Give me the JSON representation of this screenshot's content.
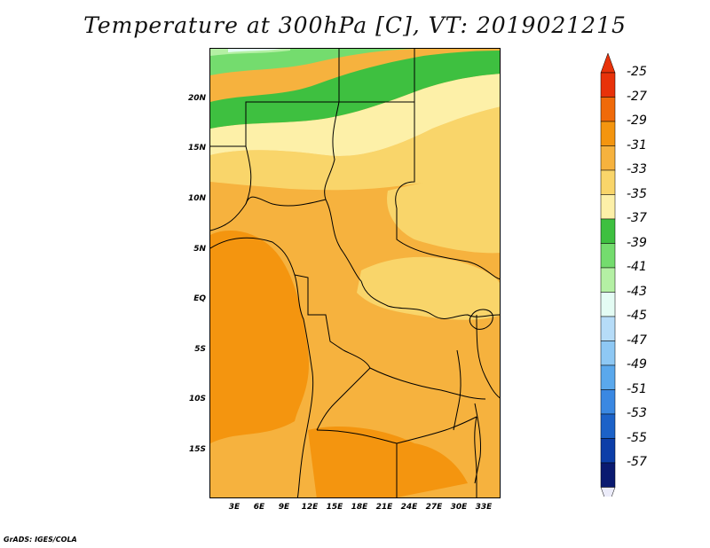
{
  "title": "Temperature at 300hPa [C], VT: 2019021215",
  "footer": "GrADS: IGES/COLA",
  "map": {
    "lat_labels": [
      "20N",
      "15N",
      "10N",
      "5N",
      "EQ",
      "5S",
      "10S",
      "15S"
    ],
    "lon_labels": [
      "3E",
      "6E",
      "9E",
      "12E",
      "15E",
      "18E",
      "21E",
      "24E",
      "27E",
      "30E",
      "33E"
    ],
    "field": "Temperature",
    "level": "300hPa",
    "units": "C",
    "valid_time": "2019021215"
  },
  "colorbar": {
    "labels": [
      "-25",
      "-27",
      "-29",
      "-31",
      "-33",
      "-35",
      "-37",
      "-39",
      "-41",
      "-43",
      "-45",
      "-47",
      "-49",
      "-51",
      "-53",
      "-55",
      "-57"
    ],
    "colors": [
      "#e8320a",
      "#f06a0a",
      "#f4950f",
      "#f6b23e",
      "#f9d56a",
      "#fdf0a8",
      "#3ec040",
      "#74dc6e",
      "#b4f0a4",
      "#e4fcf4",
      "#b6dcf8",
      "#8ec8f4",
      "#5aa8ec",
      "#3a88e2",
      "#1c62c8",
      "#0c3ea8",
      "#0a1a70"
    ],
    "top_color": "#e8320a",
    "bottom_color": "#ececfa"
  }
}
